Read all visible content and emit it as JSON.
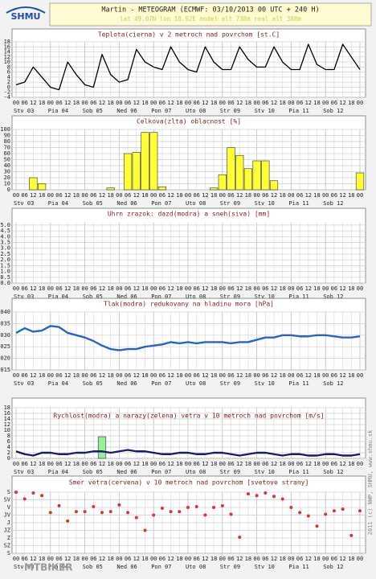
{
  "header": {
    "logo": "SHMU",
    "title": "Martin - METEOGRAM (ECMWF: 03/10/2013 00 UTC + 240 H)",
    "subtitle": "lat 49.07N  lon 18.92E  model alt 738m  real alt 388m"
  },
  "side_note": "2011 (c) NWP, SHMU, www.shmu.sk",
  "watermark": "MTBIKER",
  "chart_data": [
    {
      "type": "line",
      "title": "Teplota(cierna) v 2 metroch nad povrchom [st.C]",
      "color": "#000000",
      "categories": [
        "00",
        "06",
        "12",
        "18",
        "00",
        "06",
        "12",
        "18",
        "00",
        "06",
        "12",
        "18",
        "00",
        "06",
        "12",
        "18",
        "00",
        "06",
        "12",
        "18",
        "00",
        "06",
        "12",
        "18",
        "00",
        "06",
        "12",
        "18",
        "00",
        "06",
        "12",
        "18",
        "00",
        "06",
        "12",
        "18",
        "00",
        "06",
        "12",
        "18",
        "00"
      ],
      "days": [
        "Stv 03",
        "Pia 04",
        "Sob 05",
        "Ned 06",
        "Pon 07",
        "Uto 08",
        "Str 09",
        "Stv 10",
        "Pia 11",
        "Sob 12"
      ],
      "values": [
        1,
        2,
        8,
        4,
        0,
        -1,
        10,
        5,
        1,
        0,
        13,
        5,
        2,
        3,
        15,
        10,
        8,
        7,
        16,
        10,
        7,
        6,
        16,
        10,
        7,
        7,
        16,
        11,
        8,
        8,
        16,
        10,
        7,
        7,
        17,
        9,
        7,
        7,
        17,
        12,
        7
      ],
      "ylim": [
        -4,
        18
      ],
      "yticks": [
        -4,
        -2,
        0,
        2,
        4,
        6,
        8,
        10,
        12,
        14,
        16,
        18
      ],
      "grid": true
    },
    {
      "type": "bar",
      "title": "Celkova(zlta) oblacnost [%]",
      "color": "#ffff33",
      "categories": [
        "00",
        "06",
        "12",
        "18",
        "00",
        "06",
        "12",
        "18",
        "00",
        "06",
        "12",
        "18",
        "00",
        "06",
        "12",
        "18",
        "00",
        "06",
        "12",
        "18",
        "00",
        "06",
        "12",
        "18",
        "00",
        "06",
        "12",
        "18",
        "00",
        "06",
        "12",
        "18",
        "00",
        "06",
        "12",
        "18",
        "00",
        "06",
        "12",
        "18",
        "00"
      ],
      "days": [
        "Stv 03",
        "Pia 04",
        "Sob 05",
        "Ned 06",
        "Pon 07",
        "Uto 08",
        "Str 09",
        "Stv 10",
        "Pia 11",
        "Sob 12"
      ],
      "values": [
        0,
        0,
        20,
        10,
        0,
        0,
        0,
        0,
        0,
        0,
        0,
        3,
        0,
        60,
        62,
        95,
        95,
        5,
        0,
        0,
        0,
        0,
        0,
        3,
        25,
        70,
        57,
        35,
        48,
        48,
        15,
        0,
        0,
        0,
        0,
        0,
        0,
        0,
        0,
        0,
        28
      ],
      "ylim": [
        0,
        100
      ],
      "yticks": [
        0,
        10,
        20,
        30,
        40,
        50,
        60,
        70,
        80,
        90,
        100
      ],
      "grid": true
    },
    {
      "type": "bar",
      "title": "Uhrn zrazok: dazd(modra) a sneh(siva) [mm]",
      "color": "#2040c0",
      "categories": [
        "00",
        "06",
        "12",
        "18",
        "00",
        "06",
        "12",
        "18",
        "00",
        "06",
        "12",
        "18",
        "00",
        "06",
        "12",
        "18",
        "00",
        "06",
        "12",
        "18",
        "00",
        "06",
        "12",
        "18",
        "00",
        "06",
        "12",
        "18",
        "00",
        "06",
        "12",
        "18",
        "00",
        "06",
        "12",
        "18",
        "00",
        "06",
        "12",
        "18",
        "00"
      ],
      "days": [
        "Stv 03",
        "Pia 04",
        "Sob 05",
        "Ned 06",
        "Pon 07",
        "Uto 08",
        "Str 09",
        "Stv 10",
        "Pia 11",
        "Sob 12"
      ],
      "values": [
        0,
        0,
        0,
        0,
        0,
        0,
        0,
        0,
        0,
        0,
        0,
        0,
        0,
        0,
        0,
        0,
        0,
        0,
        0,
        0,
        0,
        0,
        0,
        0,
        0,
        0,
        0,
        0,
        0,
        0,
        0,
        0,
        0,
        0,
        0,
        0,
        0,
        0,
        0,
        0,
        0
      ],
      "ylim": [
        0,
        5.2
      ],
      "yticks": [
        {
          "value": 0,
          "label": "0.0"
        },
        0.5,
        {
          "value": 1,
          "label": "1.0"
        },
        1.5,
        {
          "value": 2,
          "label": "2.0"
        },
        2.5,
        {
          "value": 3,
          "label": "3.0"
        },
        3.5,
        {
          "value": 4,
          "label": "4.0"
        },
        4.5,
        {
          "value": 5,
          "label": "5.0"
        }
      ],
      "grid": true
    },
    {
      "type": "line",
      "title": "Tlak(modra) redukovany na hladinu mora [hPa]",
      "color": "#2266cc",
      "categories": [
        "00",
        "06",
        "12",
        "18",
        "00",
        "06",
        "12",
        "18",
        "00",
        "06",
        "12",
        "18",
        "00",
        "06",
        "12",
        "18",
        "00",
        "06",
        "12",
        "18",
        "00",
        "06",
        "12",
        "18",
        "00",
        "06",
        "12",
        "18",
        "00",
        "06",
        "12",
        "18",
        "00",
        "06",
        "12",
        "18",
        "00",
        "06",
        "12",
        "18",
        "00"
      ],
      "days": [
        "Stv 03",
        "Pia 04",
        "Sob 05",
        "Ned 06",
        "Pon 07",
        "Uto 08",
        "Str 09",
        "Stv 10",
        "Pia 11",
        "Sob 12"
      ],
      "values": [
        1031,
        1033,
        1031.5,
        1032,
        1034,
        1033.5,
        1031,
        1030,
        1029,
        1027.5,
        1025.5,
        1024,
        1023.5,
        1024,
        1024,
        1025,
        1025.5,
        1026,
        1027,
        1026.5,
        1027,
        1026.5,
        1027,
        1027,
        1027,
        1026.5,
        1027,
        1027,
        1028,
        1029,
        1029,
        1030,
        1030,
        1029.5,
        1029.5,
        1030,
        1030,
        1029.5,
        1029,
        1029,
        1029.5
      ],
      "ylim": [
        1015,
        1040
      ],
      "yticks": [
        1015,
        1020,
        1025,
        1030,
        1035,
        1040
      ],
      "grid": true
    },
    {
      "type": "line",
      "title": "Rychlost(modra) a narazy(zelena) vetra v 10 metroch nad povrchom [m/s]",
      "categories": [
        "00",
        "06",
        "12",
        "18",
        "00",
        "06",
        "12",
        "18",
        "00",
        "06",
        "12",
        "18",
        "00",
        "06",
        "12",
        "18",
        "00",
        "06",
        "12",
        "18",
        "00",
        "06",
        "12",
        "18",
        "00",
        "06",
        "12",
        "18",
        "00",
        "06",
        "12",
        "18",
        "00",
        "06",
        "12",
        "18",
        "00",
        "06",
        "12",
        "18",
        "00"
      ],
      "days": [
        "Stv 03",
        "Pia 04",
        "Sob 05",
        "Ned 06",
        "Pon 07",
        "Uto 08",
        "Str 09",
        "Stv 10",
        "Pia 11",
        "Sob 12"
      ],
      "series": [
        {
          "type": "bar",
          "color": "#99ee99",
          "values": [
            null,
            null,
            null,
            null,
            null,
            null,
            null,
            null,
            null,
            null,
            7.7,
            null,
            null,
            null,
            null,
            null,
            null,
            null,
            null,
            null,
            null,
            null,
            null,
            null,
            null,
            null,
            null,
            null,
            null,
            null,
            null,
            null,
            null,
            null,
            null,
            null,
            null,
            null,
            null,
            null,
            null
          ]
        },
        {
          "type": "line",
          "color": "#1a1a6e",
          "values": [
            2.5,
            1.5,
            1,
            2,
            2,
            1.5,
            1.5,
            2,
            2,
            2.5,
            2.5,
            2,
            2.5,
            3,
            2.5,
            2.5,
            2,
            1.5,
            1.5,
            2,
            2,
            1.5,
            1.5,
            2,
            2,
            1.5,
            1,
            1.5,
            2,
            2,
            1.5,
            1,
            1.5,
            1.5,
            1,
            1,
            1.5,
            1.5,
            1,
            1,
            1.5
          ]
        }
      ],
      "ylim": [
        0,
        18
      ],
      "yticks": [
        0,
        2,
        4,
        6,
        8,
        10,
        12,
        14,
        16,
        18
      ],
      "grid": true
    },
    {
      "type": "scatter",
      "title": "Smer vetra(cervena) v 10 metroch nad povrchom [svetove strany]",
      "color": "#dd3333",
      "categories": [
        "00",
        "06",
        "12",
        "18",
        "00",
        "06",
        "12",
        "18",
        "00",
        "06",
        "12",
        "18",
        "00",
        "06",
        "12",
        "18",
        "00",
        "06",
        "12",
        "18",
        "00",
        "06",
        "12",
        "18",
        "00",
        "06",
        "12",
        "18",
        "00",
        "06",
        "12",
        "18",
        "00",
        "06",
        "12",
        "18",
        "00",
        "06",
        "12",
        "18",
        "00"
      ],
      "days": [
        "Stv 03",
        "Pia 04",
        "Sob 05",
        "Ned 06",
        "Pon 07",
        "Uto 08",
        "Str 09",
        "Stv 10",
        "Pia 11",
        "Sob 12"
      ],
      "values": [
        0,
        40,
        5,
        20,
        120,
        80,
        170,
        115,
        115,
        85,
        120,
        115,
        75,
        120,
        150,
        225,
        135,
        95,
        115,
        115,
        90,
        85,
        135,
        90,
        80,
        130,
        265,
        10,
        20,
        5,
        25,
        40,
        90,
        120,
        140,
        200,
        130,
        110,
        100,
        255,
        110
      ],
      "ylim": [
        360,
        0
      ],
      "yticks": [
        {
          "value": 0,
          "label": "S"
        },
        {
          "value": 45,
          "label": "SV"
        },
        {
          "value": 90,
          "label": "V"
        },
        {
          "value": 135,
          "label": "JV"
        },
        {
          "value": 180,
          "label": "J"
        },
        {
          "value": 225,
          "label": "JZ"
        },
        {
          "value": 270,
          "label": "Z"
        },
        {
          "value": 315,
          "label": "SZ"
        },
        {
          "value": 360,
          "label": "S"
        }
      ],
      "grid": true
    }
  ]
}
